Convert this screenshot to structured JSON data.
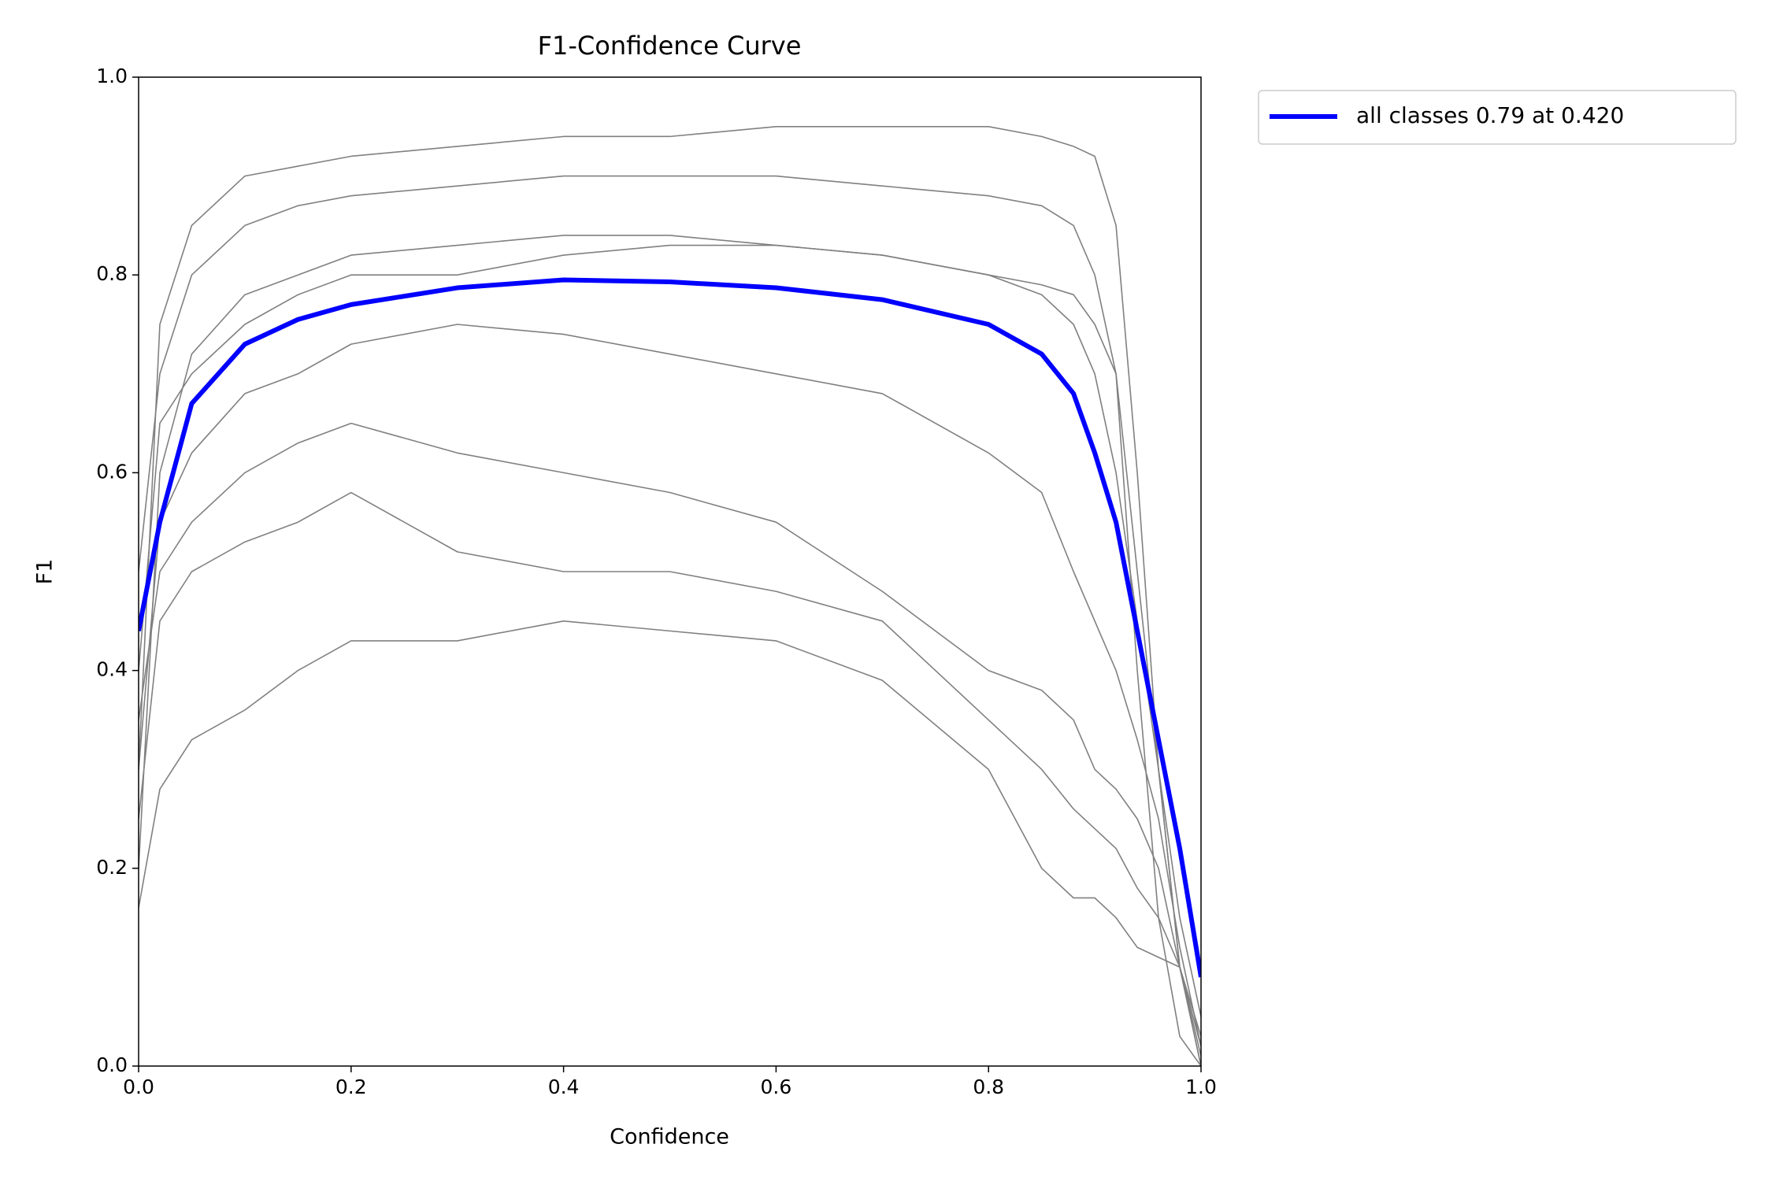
{
  "chart_data": {
    "type": "line",
    "title": "F1-Confidence Curve",
    "x_label": "Confidence",
    "y_label": "F1",
    "x": [
      0,
      0.02,
      0.05,
      0.1,
      0.15,
      0.2,
      0.3,
      0.4,
      0.5,
      0.6,
      0.7,
      0.8,
      0.85,
      0.88,
      0.9,
      0.92,
      0.94,
      0.96,
      0.98,
      1.0
    ],
    "series": [
      {
        "color": "#808080",
        "values": [
          0.3,
          0.75,
          0.85,
          0.9,
          0.91,
          0.92,
          0.93,
          0.94,
          0.94,
          0.95,
          0.95,
          0.95,
          0.94,
          0.93,
          0.92,
          0.85,
          0.6,
          0.3,
          0.1,
          0
        ]
      },
      {
        "color": "#808080",
        "values": [
          0.2,
          0.6,
          0.72,
          0.78,
          0.8,
          0.82,
          0.83,
          0.84,
          0.84,
          0.83,
          0.82,
          0.8,
          0.78,
          0.75,
          0.7,
          0.6,
          0.45,
          0.3,
          0.15,
          0.05
        ]
      },
      {
        "color": "#808080",
        "values": [
          0.3,
          0.55,
          0.62,
          0.68,
          0.7,
          0.73,
          0.75,
          0.74,
          0.72,
          0.7,
          0.68,
          0.62,
          0.58,
          0.5,
          0.45,
          0.4,
          0.33,
          0.25,
          0.12,
          0.02
        ]
      },
      {
        "color": "#808080",
        "values": [
          0.16,
          0.28,
          0.33,
          0.36,
          0.4,
          0.43,
          0.43,
          0.45,
          0.44,
          0.43,
          0.39,
          0.3,
          0.2,
          0.17,
          0.17,
          0.15,
          0.12,
          0.11,
          0.1,
          0.03
        ]
      },
      {
        "color": "#808080",
        "values": [
          0.4,
          0.65,
          0.7,
          0.75,
          0.78,
          0.8,
          0.8,
          0.82,
          0.83,
          0.83,
          0.82,
          0.8,
          0.79,
          0.78,
          0.75,
          0.7,
          0.5,
          0.3,
          0.1,
          0.01
        ]
      },
      {
        "color": "#808080",
        "values": [
          0.35,
          0.5,
          0.55,
          0.6,
          0.63,
          0.65,
          0.62,
          0.6,
          0.58,
          0.55,
          0.48,
          0.4,
          0.38,
          0.35,
          0.3,
          0.28,
          0.25,
          0.2,
          0.1,
          0
        ]
      },
      {
        "color": "#808080",
        "values": [
          0.5,
          0.7,
          0.8,
          0.85,
          0.87,
          0.88,
          0.89,
          0.9,
          0.9,
          0.9,
          0.89,
          0.88,
          0.87,
          0.85,
          0.8,
          0.7,
          0.4,
          0.15,
          0.03,
          0
        ]
      },
      {
        "color": "#808080",
        "values": [
          0.25,
          0.45,
          0.5,
          0.53,
          0.55,
          0.58,
          0.52,
          0.5,
          0.5,
          0.48,
          0.45,
          0.35,
          0.3,
          0.26,
          0.24,
          0.22,
          0.18,
          0.15,
          0.1,
          0.02
        ]
      },
      {
        "name": "all classes 0.79 at 0.420",
        "color": "#0000ff",
        "values": [
          0.44,
          0.55,
          0.67,
          0.73,
          0.755,
          0.77,
          0.787,
          0.795,
          0.793,
          0.787,
          0.775,
          0.75,
          0.72,
          0.68,
          0.62,
          0.55,
          0.44,
          0.33,
          0.22,
          0.09
        ]
      }
    ],
    "xlim": [
      0,
      1
    ],
    "ylim": [
      0,
      1
    ],
    "xticks": [
      {
        "value": 0,
        "label": "0.0"
      },
      0.2,
      0.4,
      0.6,
      0.8,
      {
        "value": 1,
        "label": "1.0"
      }
    ],
    "yticks": [
      {
        "value": 0,
        "label": "0.0"
      },
      0.2,
      0.4,
      0.6,
      0.8,
      {
        "value": 1,
        "label": "1.0"
      }
    ],
    "grid": false,
    "legend": "outside upper right"
  }
}
